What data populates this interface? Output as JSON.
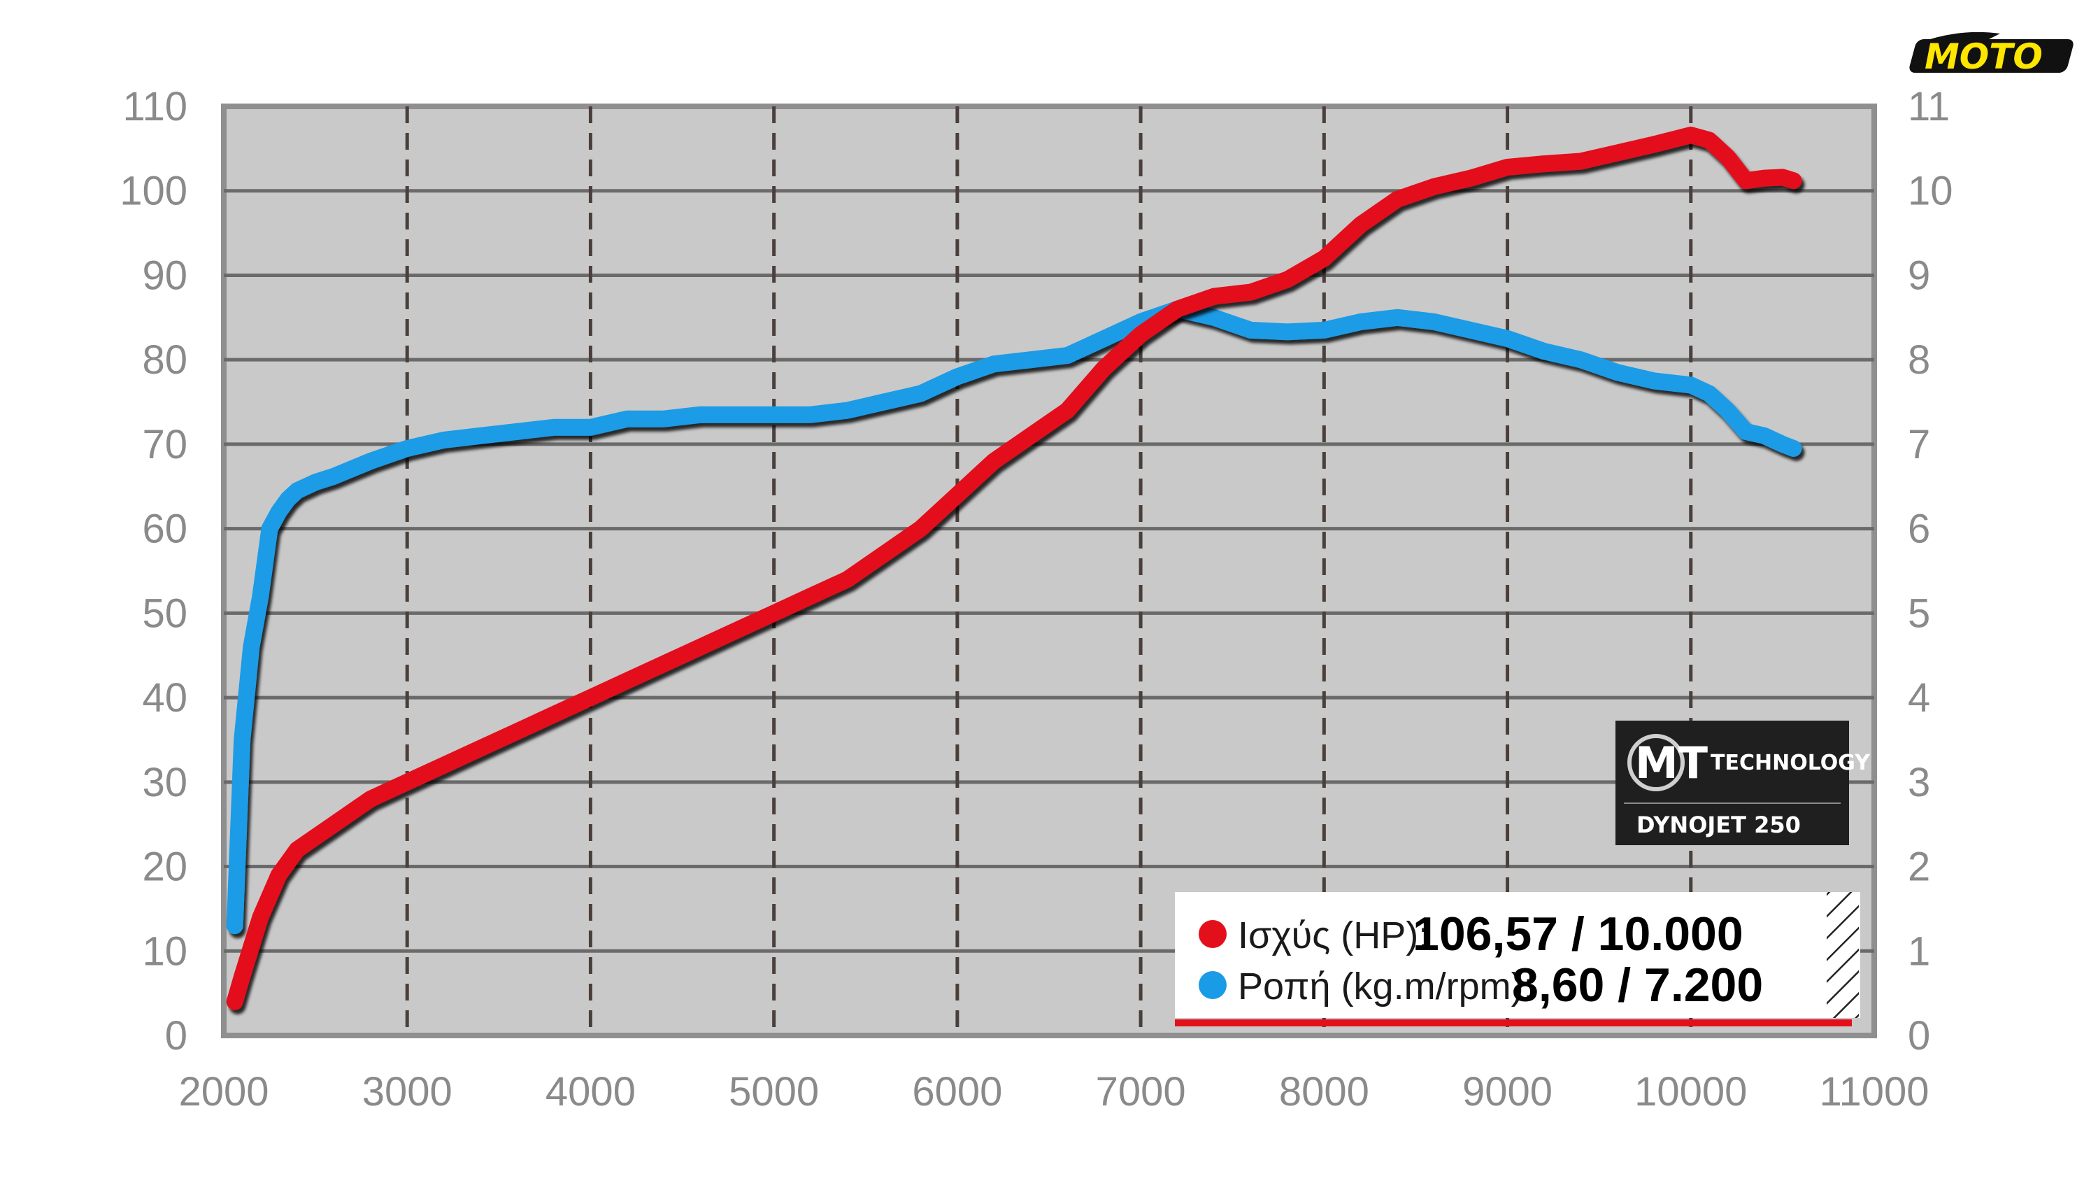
{
  "chart_data": {
    "type": "line",
    "x_ticks": [
      "2000",
      "3000",
      "4000",
      "5000",
      "6000",
      "7000",
      "8000",
      "9000",
      "10000",
      "11000"
    ],
    "y_left_ticks": [
      "0",
      "10",
      "20",
      "30",
      "40",
      "50",
      "60",
      "70",
      "80",
      "90",
      "100",
      "110"
    ],
    "y_right_ticks": [
      "0",
      "1",
      "2",
      "3",
      "4",
      "5",
      "6",
      "7",
      "8",
      "9",
      "10",
      "11"
    ],
    "xlim": [
      2000,
      11000
    ],
    "ylim_left": [
      0,
      110
    ],
    "ylim_right": [
      0,
      11
    ],
    "grid": true,
    "series": [
      {
        "name": "Ισχύς (HP)",
        "axis": "left",
        "color": "#e3101b",
        "x": [
          2060,
          2100,
          2200,
          2300,
          2400,
          2600,
          2800,
          3000,
          3200,
          3400,
          3600,
          3800,
          4000,
          4200,
          4400,
          4600,
          4800,
          5000,
          5200,
          5400,
          5600,
          5800,
          6000,
          6200,
          6400,
          6600,
          6800,
          7000,
          7200,
          7400,
          7600,
          7800,
          8000,
          8200,
          8400,
          8600,
          8800,
          9000,
          9200,
          9400,
          9600,
          9800,
          10000,
          10100,
          10200,
          10300,
          10400,
          10500,
          10560
        ],
        "y": [
          4,
          7,
          14,
          19,
          22,
          25,
          28,
          30,
          32,
          34,
          36,
          38,
          40,
          42,
          44,
          46,
          48,
          50,
          52,
          54,
          57,
          60,
          64,
          68,
          71,
          74,
          79,
          83,
          86,
          87.5,
          88,
          89.5,
          92,
          96,
          99,
          100.5,
          101.5,
          102.8,
          103.2,
          103.5,
          104.5,
          105.5,
          106.6,
          106,
          104,
          101.2,
          101.5,
          101.6,
          101.2
        ]
      },
      {
        "name": "Ροπή (kg.m/rpm)",
        "axis": "right",
        "color": "#1a9be6",
        "x": [
          2060,
          2100,
          2150,
          2200,
          2250,
          2300,
          2350,
          2400,
          2500,
          2600,
          2800,
          3000,
          3200,
          3400,
          3600,
          3800,
          4000,
          4200,
          4400,
          4600,
          4800,
          5000,
          5200,
          5400,
          5600,
          5800,
          6000,
          6200,
          6400,
          6600,
          6800,
          7000,
          7200,
          7400,
          7600,
          7800,
          8000,
          8200,
          8400,
          8600,
          8800,
          9000,
          9200,
          9400,
          9600,
          9800,
          10000,
          10100,
          10200,
          10300,
          10400,
          10500,
          10560
        ],
        "y": [
          1.3,
          3.5,
          4.6,
          5.2,
          6.0,
          6.2,
          6.35,
          6.45,
          6.55,
          6.62,
          6.8,
          6.95,
          7.05,
          7.1,
          7.15,
          7.2,
          7.2,
          7.3,
          7.3,
          7.35,
          7.35,
          7.35,
          7.35,
          7.4,
          7.5,
          7.6,
          7.8,
          7.95,
          8.0,
          8.05,
          8.25,
          8.45,
          8.6,
          8.5,
          8.35,
          8.33,
          8.35,
          8.45,
          8.5,
          8.45,
          8.35,
          8.25,
          8.1,
          8.0,
          7.85,
          7.75,
          7.7,
          7.6,
          7.4,
          7.15,
          7.1,
          7.0,
          6.95
        ]
      }
    ],
    "legend": {
      "placement": "bottom-right",
      "items": [
        {
          "label": "Ισχύς (HP):",
          "value": "106,57 / 10.000",
          "color": "#e3101b"
        },
        {
          "label": "Ροπή (kg.m/rpm):",
          "value": "8,60 / 7.200",
          "color": "#1a9be6"
        }
      ]
    },
    "grid_color": "#6a6a6a",
    "plot_background": "#c9c9c9"
  },
  "badge": {
    "line1": "TECHNOLOGY",
    "line2": "DYNOJET 250",
    "mark": "MT"
  },
  "logo": {
    "text": "MOTO",
    "color": "#ffe600"
  }
}
